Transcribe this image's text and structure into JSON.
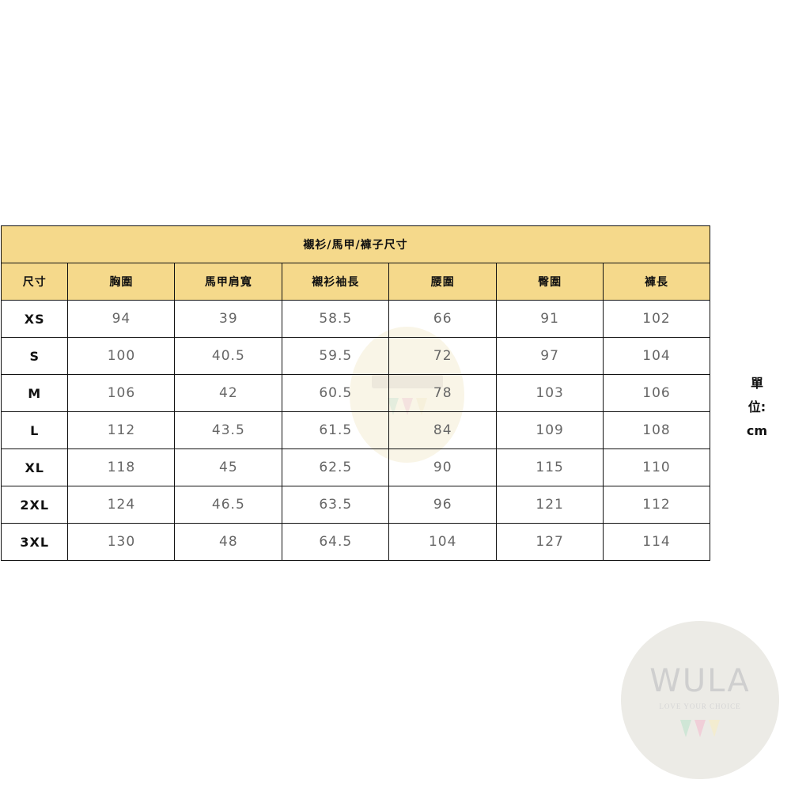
{
  "title": "襯衫/馬甲/褲子尺寸",
  "headers": [
    "尺寸",
    "胸圍",
    "馬甲肩寬",
    "襯衫袖長",
    "腰圍",
    "臀圍",
    "褲長"
  ],
  "rows": [
    [
      "XS",
      "94",
      "39",
      "58.5",
      "66",
      "91",
      "102"
    ],
    [
      "S",
      "100",
      "40.5",
      "59.5",
      "72",
      "97",
      "104"
    ],
    [
      "M",
      "106",
      "42",
      "60.5",
      "78",
      "103",
      "106"
    ],
    [
      "L",
      "112",
      "43.5",
      "61.5",
      "84",
      "109",
      "108"
    ],
    [
      "XL",
      "118",
      "45",
      "62.5",
      "90",
      "115",
      "110"
    ],
    [
      "2XL",
      "124",
      "46.5",
      "63.5",
      "96",
      "121",
      "112"
    ],
    [
      "3XL",
      "130",
      "48",
      "64.5",
      "104",
      "127",
      "114"
    ]
  ],
  "unit": {
    "line1": "單",
    "line2": "位:",
    "line3": "cm"
  },
  "watermark": {
    "brand": "WULA",
    "tagline": "LOVE YOUR CHOICE"
  },
  "colors": {
    "header_bg": "#f5d98b",
    "watermark_bg": "#ecebe6"
  }
}
